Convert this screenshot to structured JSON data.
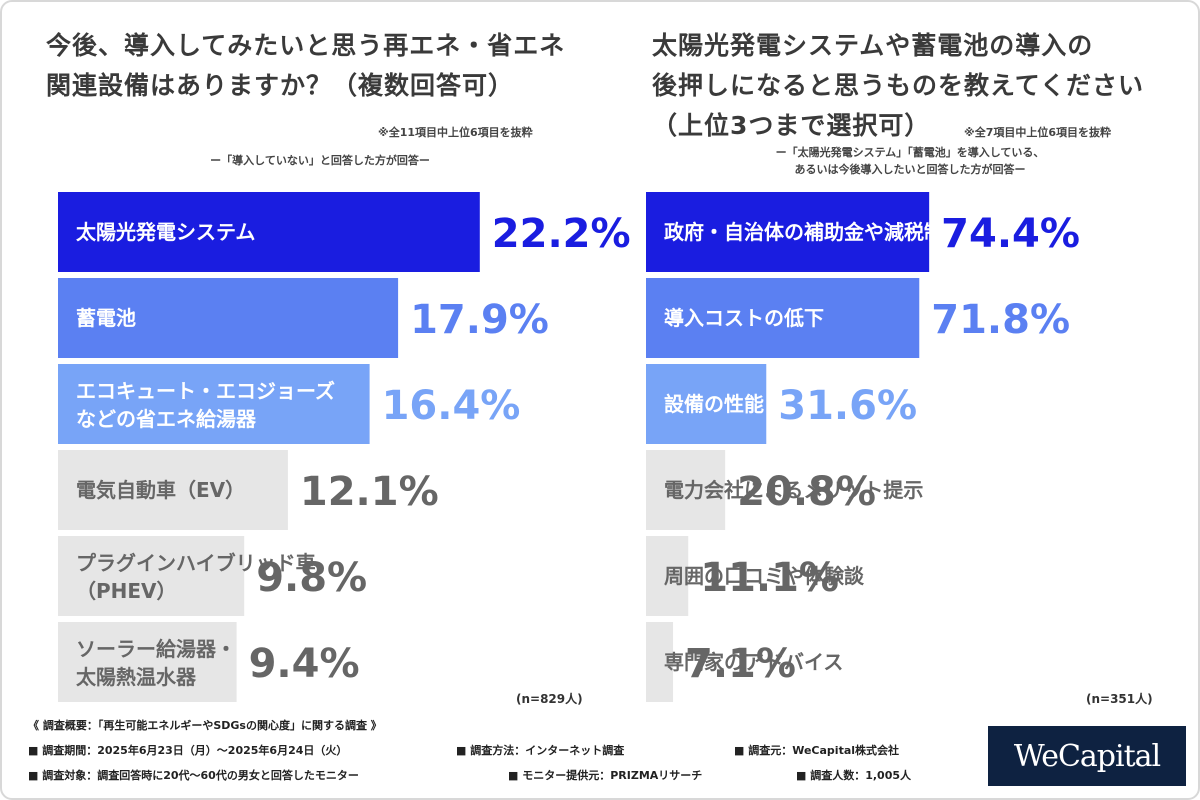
{
  "colors": {
    "rank1": "#1a1de0",
    "rank2": "#5b80f2",
    "rank3": "#78a4f7",
    "rest": "#e6e6e6",
    "rest_text": "#666666",
    "light_text": "#ffffff"
  },
  "left": {
    "title_lines": [
      "今後、導入してみたいと思う再エネ・省エネ",
      "関連設備はありますか？（複数回答可）"
    ],
    "note": "※全11項目中上位6項目を抜粋",
    "subtitle_lines": [
      "ー「導入していない」と回答した方が回答ー"
    ],
    "n_label": "(n=829人)"
  },
  "right": {
    "title_lines": [
      "太陽光発電システムや蓄電池の導入の",
      "後押しになると思うものを教えてください",
      "（上位3つまで選択可）"
    ],
    "note": "※全7項目中上位6項目を抜粋",
    "subtitle_lines": [
      "ー「太陽光発電システム」「蓄電池」を導入している、",
      "あるいは今後導入したいと回答した方が回答ー"
    ],
    "n_label": "(n=351人)"
  },
  "chart_data": [
    {
      "type": "bar",
      "orientation": "horizontal",
      "title": "今後、導入してみたいと思う再エネ・省エネ関連設備はありますか？（複数回答可）",
      "categories": [
        "太陽光発電システム",
        "蓄電池",
        "エコキュート・エコジョーズ\nなどの省エネ給湯器",
        "電気自動車（EV）",
        "プラグインハイブリッド車\n（PHEV）",
        "ソーラー給湯器・\n太陽熱温水器"
      ],
      "values": [
        22.2,
        17.9,
        16.4,
        12.1,
        9.8,
        9.4
      ],
      "value_labels": [
        "22.2%",
        "17.9%",
        "16.4%",
        "12.1%",
        "9.8%",
        "9.4%"
      ],
      "unit": "%",
      "xlim": [
        0,
        40
      ],
      "legend": "none",
      "grid": false
    },
    {
      "type": "bar",
      "orientation": "horizontal",
      "title": "太陽光発電システムや蓄電池の導入の後押しになると思うものを教えてください（上位3つまで選択可）",
      "categories": [
        "政府・自治体の補助金や減税制度",
        "導入コストの低下",
        "設備の性能・安全性向上",
        "電力会社によるメリット提示",
        "周囲の口コミや体験談",
        "専門家のアドバイス"
      ],
      "values": [
        74.4,
        71.8,
        31.6,
        20.8,
        11.1,
        7.1
      ],
      "value_labels": [
        "74.4%",
        "71.8%",
        "31.6%",
        "20.8%",
        "11.1%",
        "7.1%"
      ],
      "unit": "%",
      "xlim": [
        0,
        134
      ],
      "legend": "none",
      "grid": false
    }
  ],
  "footer": {
    "heading": "《 調査概要：「再生可能エネルギーやSDGsの関心度」に関する調査 》",
    "row1": [
      "■ 調査期間：2025年6月23日（月）～2025年6月24日（火）",
      "■ 調査方法：インターネット調査",
      "■ 調査元：WeCapital株式会社"
    ],
    "row2": [
      "■ 調査対象：調査回答時に20代〜60代の男女と回答したモニター",
      "■ モニター提供元：PRIZMAリサーチ",
      "■ 調査人数：1,005人"
    ]
  },
  "logo": {
    "text": "WeCapital"
  }
}
